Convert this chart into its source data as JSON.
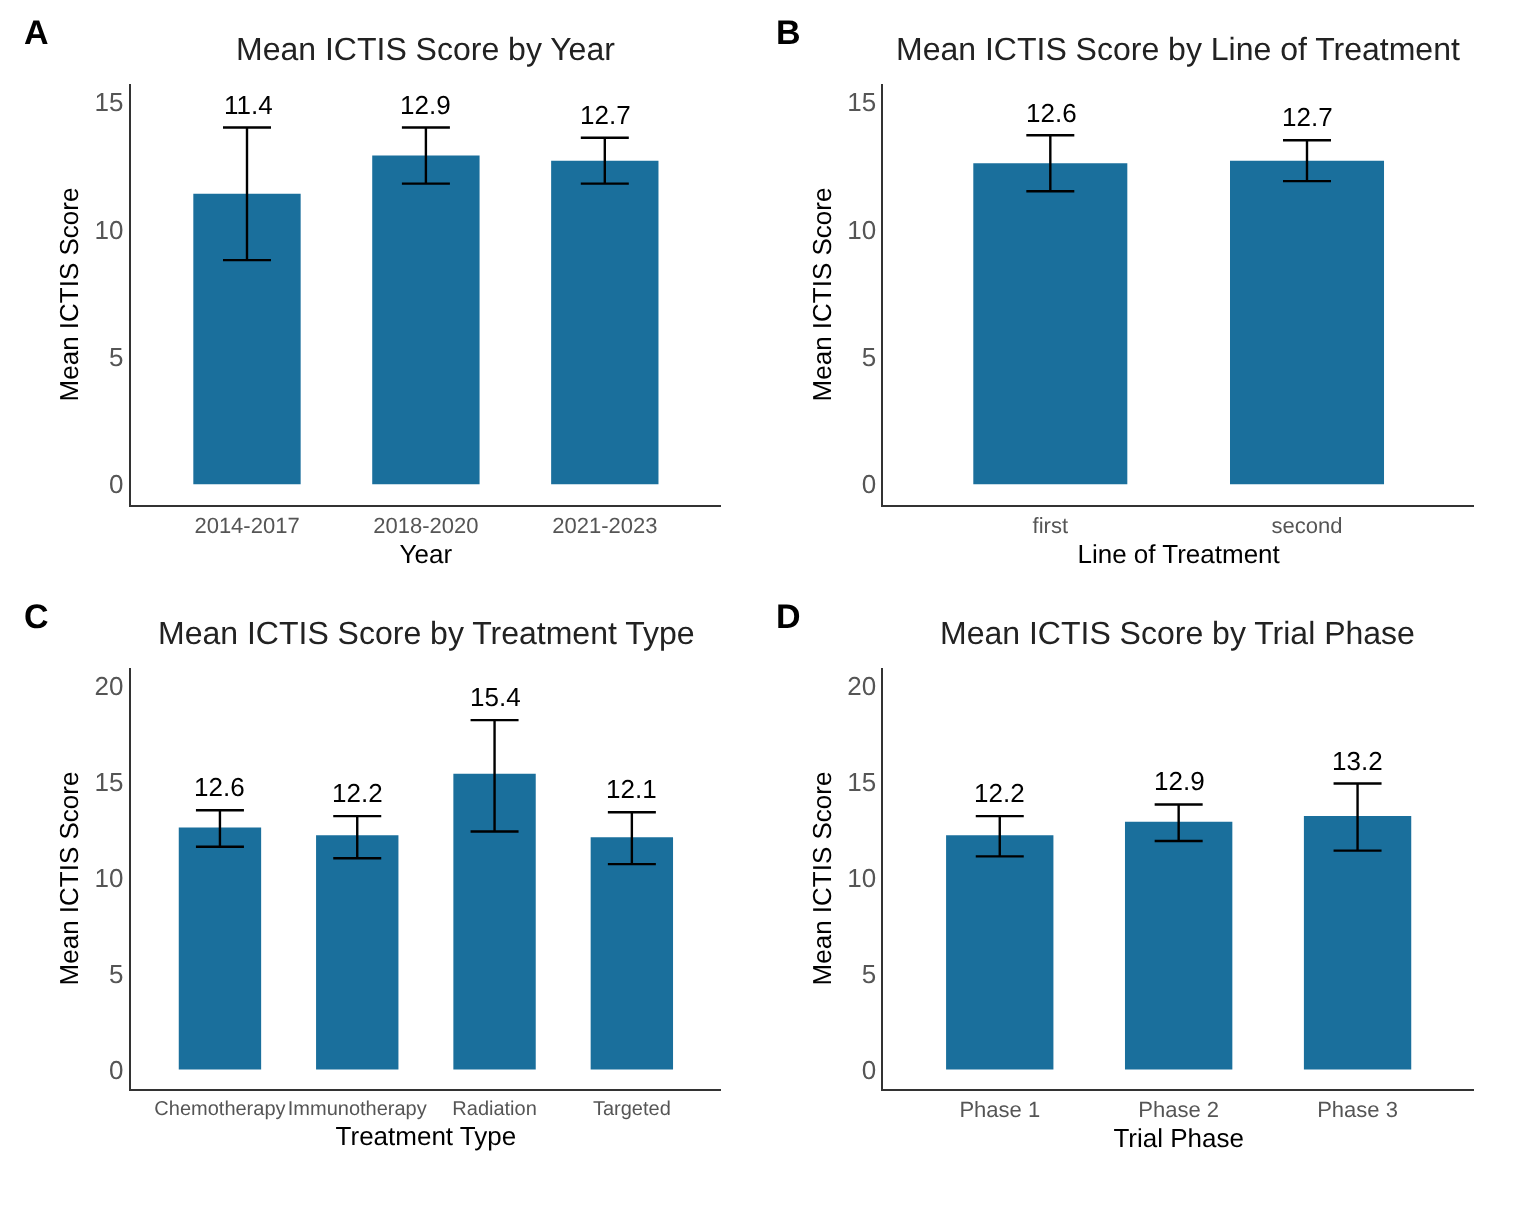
{
  "chart_data": [
    {
      "type": "bar",
      "title": "Mean ICTIS Score by Year",
      "xlabel": "Year",
      "ylabel": "Mean ICTIS Score",
      "annotations": [
        "A"
      ],
      "categories": [
        "2014-2017",
        "2018-2020",
        "2021-2023"
      ],
      "values": [
        11.4,
        12.9,
        12.7
      ],
      "color": "#1a6f9c",
      "errors": [
        [
          8.8,
          14.0
        ],
        [
          11.8,
          14.0
        ],
        [
          11.8,
          13.6
        ]
      ],
      "ylim": [
        -0.8,
        15.7
      ],
      "yticks": [
        0,
        5,
        10,
        15
      ],
      "data_labels": true
    },
    {
      "type": "bar",
      "title": "Mean ICTIS Score by Line of Treatment",
      "xlabel": "Line of Treatment",
      "ylabel": "Mean ICTIS Score",
      "annotations": [
        "B"
      ],
      "categories": [
        "first",
        "second"
      ],
      "values": [
        12.6,
        12.7
      ],
      "color": "#1a6f9c",
      "errors": [
        [
          11.5,
          13.7
        ],
        [
          11.9,
          13.5
        ]
      ],
      "ylim": [
        -0.8,
        15.7
      ],
      "yticks": [
        0,
        5,
        10,
        15
      ],
      "data_labels": true
    },
    {
      "type": "bar",
      "title": "Mean ICTIS Score by Treatment Type",
      "xlabel": "Treatment Type",
      "ylabel": "Mean ICTIS Score",
      "annotations": [
        "C"
      ],
      "categories": [
        "Chemotherapy",
        "Immunotherapy",
        "Radiation",
        "Targeted"
      ],
      "values": [
        12.6,
        12.2,
        15.4,
        12.1
      ],
      "color": "#1a6f9c",
      "errors": [
        [
          11.6,
          13.5
        ],
        [
          11.0,
          13.2
        ],
        [
          12.4,
          18.2
        ],
        [
          10.7,
          13.4
        ]
      ],
      "ylim": [
        -1,
        20.9
      ],
      "yticks": [
        0,
        5,
        10,
        15,
        20
      ],
      "data_labels": true
    },
    {
      "type": "bar",
      "title": "Mean ICTIS Score by Trial Phase",
      "xlabel": "Trial Phase",
      "ylabel": "Mean ICTIS Score",
      "annotations": [
        "D"
      ],
      "categories": [
        "Phase 1",
        "Phase 2",
        "Phase 3"
      ],
      "values": [
        12.2,
        12.9,
        13.2
      ],
      "color": "#1a6f9c",
      "errors": [
        [
          11.1,
          13.2
        ],
        [
          11.9,
          13.8
        ],
        [
          11.4,
          14.9
        ]
      ],
      "ylim": [
        -1,
        20.9
      ],
      "yticks": [
        0,
        5,
        10,
        15,
        20
      ],
      "data_labels": true
    }
  ]
}
